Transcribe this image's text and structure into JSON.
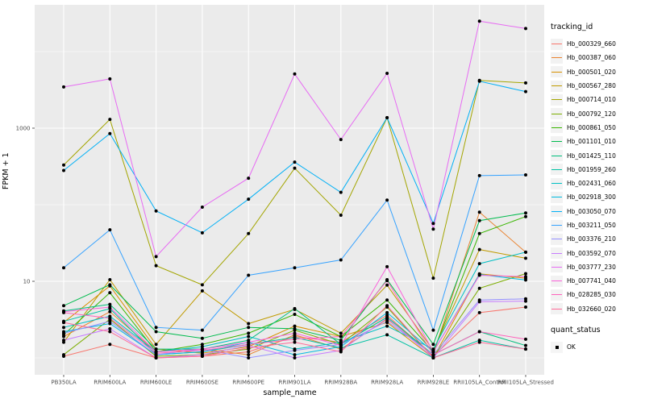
{
  "chart_data": {
    "type": "line",
    "xlabel": "sample_name",
    "ylabel": "FPKM + 1",
    "y_scale": "log10",
    "y_tick_values": [
      10,
      1000
    ],
    "y_tick_labels": [
      "10",
      "1000"
    ],
    "y_minor_values": [
      1,
      100,
      10000
    ],
    "ylim_log10": [
      -0.22,
      4.61
    ],
    "grid": "on",
    "legend_position": "right",
    "panel_bg": "#EBEBEB",
    "grid_color": "#FFFFFF",
    "tick_color": "#333333",
    "tick_label_color": "#4D4D4D",
    "point_color": "#000000",
    "categories": [
      "PB350LA",
      "RRIM600LA",
      "RRIM600LE",
      "RRIM600SE",
      "RRIM600PE",
      "RRIM901LA",
      "RRIM928BA",
      "RRIM928LA",
      "RRIM928LE",
      "RRII105LA_Control",
      "RRII105LA_Stressed"
    ],
    "series": [
      {
        "name": "Hb_000329_660",
        "color": "#F8766D",
        "values": [
          1.05,
          1.5,
          1.0,
          1.05,
          1.2,
          1.9,
          1.6,
          3.6,
          1.05,
          3.9,
          4.6
        ]
      },
      {
        "name": "Hb_000387_060",
        "color": "#EA8331",
        "values": [
          1.9,
          4.0,
          1.2,
          1.3,
          1.1,
          2.0,
          1.3,
          3.2,
          1.1,
          80,
          24
        ]
      },
      {
        "name": "Hb_000501_020",
        "color": "#D89000",
        "values": [
          2.9,
          8.7,
          1.3,
          1.15,
          1.4,
          2.6,
          1.9,
          2.9,
          1.0,
          12.5,
          11
        ]
      },
      {
        "name": "Hb_000567_280",
        "color": "#C09B00",
        "values": [
          1.6,
          10.5,
          1.5,
          7.5,
          2.8,
          4.3,
          2.1,
          8.9,
          1.25,
          26,
          20
        ]
      },
      {
        "name": "Hb_000714_010",
        "color": "#A3A500",
        "values": [
          330,
          1300,
          16,
          9,
          42,
          300,
          73,
          1370,
          11,
          4200,
          3900
        ]
      },
      {
        "name": "Hb_000792_120",
        "color": "#7CAE00",
        "values": [
          1.1,
          3.2,
          1.05,
          1.1,
          1.3,
          2.3,
          1.5,
          4.6,
          1.0,
          8.1,
          12.6
        ]
      },
      {
        "name": "Hb_000861_050",
        "color": "#39B600",
        "values": [
          2.0,
          7.1,
          1.2,
          1.5,
          2.1,
          3.7,
          1.9,
          5.7,
          1.2,
          42,
          70
        ]
      },
      {
        "name": "Hb_001101_010",
        "color": "#00BB4E",
        "values": [
          4.8,
          9.0,
          2.2,
          1.8,
          2.5,
          2.4,
          1.7,
          10.5,
          1.5,
          62,
          78
        ]
      },
      {
        "name": "Hb_001425_110",
        "color": "#00BF7D",
        "values": [
          4.1,
          5.0,
          1.3,
          1.3,
          1.7,
          4.4,
          1.5,
          3.4,
          1.1,
          2.2,
          1.45
        ]
      },
      {
        "name": "Hb_001959_260",
        "color": "#00C1A3",
        "values": [
          3.0,
          4.4,
          1.1,
          1.2,
          1.5,
          1.85,
          1.35,
          2.0,
          1.0,
          1.7,
          1.3
        ]
      },
      {
        "name": "Hb_002431_060",
        "color": "#00BFC4",
        "values": [
          2.5,
          3.5,
          1.2,
          1.4,
          1.9,
          1.3,
          1.6,
          2.6,
          1.3,
          17,
          24
        ]
      },
      {
        "name": "Hb_002918_300",
        "color": "#00BAE0",
        "values": [
          2.2,
          2.8,
          1.1,
          1.2,
          1.6,
          1.1,
          1.4,
          3.9,
          1.2,
          12.3,
          10.4
        ]
      },
      {
        "name": "Hb_003050_070",
        "color": "#00B0F6",
        "values": [
          280,
          850,
          83,
          43,
          118,
          360,
          145,
          1370,
          57,
          4100,
          3000
        ]
      },
      {
        "name": "Hb_003211_050",
        "color": "#35A2FF",
        "values": [
          15,
          47,
          2.5,
          2.3,
          12,
          15,
          19,
          115,
          2.3,
          240,
          245
        ]
      },
      {
        "name": "Hb_003376_210",
        "color": "#9590FF",
        "values": [
          2.1,
          3.0,
          1.1,
          1.3,
          1.0,
          1.25,
          1.5,
          3.0,
          1.1,
          5.7,
          5.9
        ]
      },
      {
        "name": "Hb_003592_070",
        "color": "#C77CFF",
        "values": [
          1.7,
          2.4,
          1.0,
          1.1,
          1.45,
          1.0,
          1.25,
          3.3,
          1.0,
          5.4,
          5.5
        ]
      },
      {
        "name": "Hb_003777_230",
        "color": "#E76BF3",
        "values": [
          3450,
          4400,
          21,
          93,
          222,
          5100,
          710,
          5200,
          48,
          25000,
          20000
        ]
      },
      {
        "name": "Hb_007741_040",
        "color": "#FA62DB",
        "values": [
          4.0,
          4.6,
          1.2,
          1.3,
          1.6,
          2.1,
          1.45,
          15.5,
          1.2,
          12,
          11.5
        ]
      },
      {
        "name": "Hb_028285_030",
        "color": "#FF62BC",
        "values": [
          3.9,
          3.3,
          1.15,
          1.25,
          1.5,
          1.75,
          1.9,
          10.2,
          1.1,
          2.2,
          1.75
        ]
      },
      {
        "name": "Hb_032660_020",
        "color": "#FF6A98",
        "values": [
          2.9,
          2.2,
          1.0,
          1.05,
          1.35,
          1.6,
          1.2,
          4.8,
          1.0,
          1.6,
          1.3
        ]
      }
    ],
    "legend": {
      "tracking_title": "tracking_id",
      "quant_title": "quant_status",
      "quant_items": [
        "OK"
      ]
    }
  }
}
